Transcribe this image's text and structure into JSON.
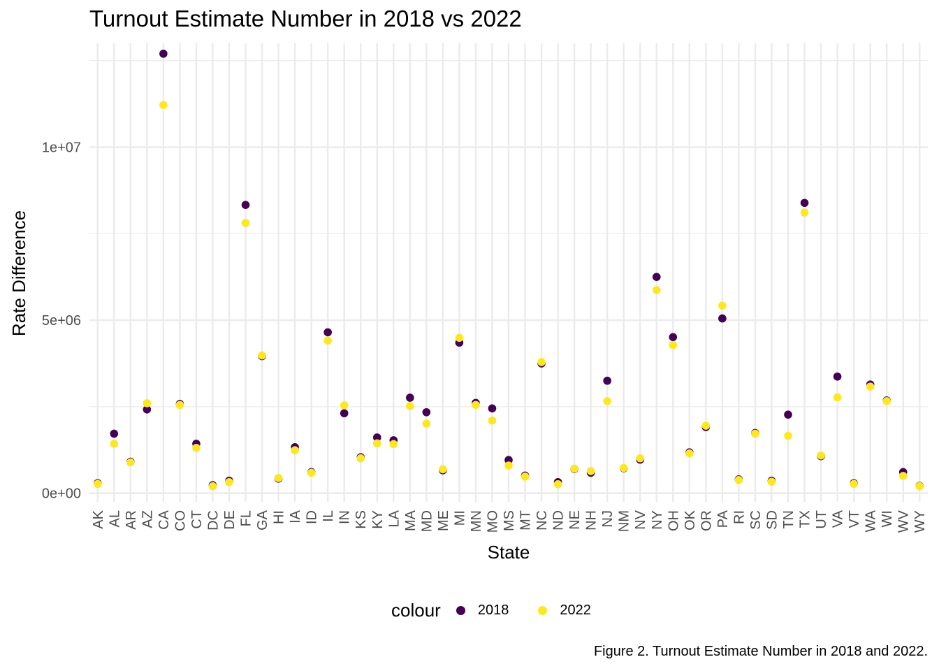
{
  "chart_data": {
    "type": "scatter",
    "title": "Turnout Estimate Number in 2018 vs 2022",
    "xlabel": "State",
    "ylabel": "Rate Difference",
    "caption": "Figure 2. Turnout Estimate Number in 2018 and 2022.",
    "categories": [
      "AK",
      "AL",
      "AR",
      "AZ",
      "CA",
      "CO",
      "CT",
      "DC",
      "DE",
      "FL",
      "GA",
      "HI",
      "IA",
      "ID",
      "IL",
      "IN",
      "KS",
      "KY",
      "LA",
      "MA",
      "MD",
      "ME",
      "MI",
      "MN",
      "MO",
      "MS",
      "MT",
      "NC",
      "ND",
      "NE",
      "NH",
      "NJ",
      "NM",
      "NV",
      "NY",
      "OH",
      "OK",
      "OR",
      "PA",
      "RI",
      "SC",
      "SD",
      "TN",
      "TX",
      "UT",
      "VA",
      "VT",
      "WA",
      "WI",
      "WV",
      "WY"
    ],
    "yticks": [
      0,
      5000000,
      10000000
    ],
    "ytick_labels": [
      "0e+00",
      "5e+06",
      "1e+07"
    ],
    "ylim": [
      -250000,
      13000000
    ],
    "grid": true,
    "legend": {
      "title": "colour",
      "position": "bottom"
    },
    "series": [
      {
        "name": "2018",
        "color": "#440154",
        "values": [
          290000,
          1720000,
          910000,
          2420000,
          12700000,
          2580000,
          1430000,
          230000,
          360000,
          8330000,
          3960000,
          420000,
          1330000,
          610000,
          4650000,
          2310000,
          1040000,
          1610000,
          1530000,
          2760000,
          2340000,
          660000,
          4350000,
          2610000,
          2450000,
          960000,
          510000,
          3750000,
          320000,
          700000,
          590000,
          3250000,
          720000,
          970000,
          6250000,
          4510000,
          1180000,
          1910000,
          5050000,
          400000,
          1740000,
          360000,
          2270000,
          8390000,
          1070000,
          3370000,
          290000,
          3140000,
          2680000,
          610000,
          210000
        ]
      },
      {
        "name": "2022",
        "color": "#FDE725",
        "values": [
          270000,
          1430000,
          890000,
          2600000,
          11220000,
          2550000,
          1310000,
          200000,
          320000,
          7810000,
          3980000,
          440000,
          1240000,
          590000,
          4410000,
          2540000,
          1010000,
          1440000,
          1420000,
          2520000,
          2010000,
          690000,
          4490000,
          2550000,
          2100000,
          800000,
          480000,
          3790000,
          260000,
          710000,
          640000,
          2660000,
          730000,
          1010000,
          5870000,
          4280000,
          1150000,
          1950000,
          5420000,
          380000,
          1720000,
          330000,
          1660000,
          8110000,
          1090000,
          2770000,
          270000,
          3080000,
          2660000,
          500000,
          200000
        ]
      }
    ]
  }
}
